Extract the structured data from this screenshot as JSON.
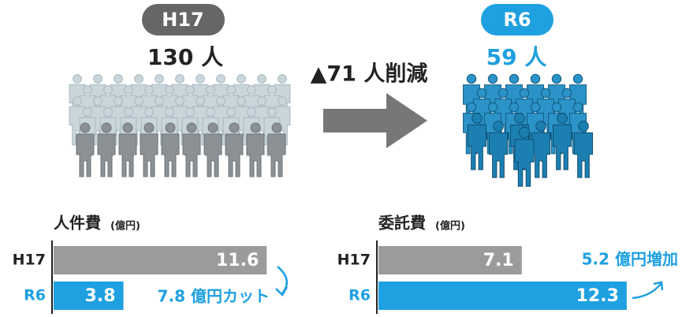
{
  "headcount": {
    "before": {
      "era": "H17",
      "count": "130 人"
    },
    "change": "▲71 人削減",
    "after": {
      "era": "R6",
      "count": "59 人"
    }
  },
  "chart_data": [
    {
      "type": "bar",
      "title": "人件費",
      "unit": "(億円)",
      "categories": [
        "H17",
        "R6"
      ],
      "values": [
        11.6,
        3.8
      ],
      "colors": [
        "#9b9b9b",
        "#1ea0e1"
      ],
      "annotation": "7.8 億円カット"
    },
    {
      "type": "bar",
      "title": "委託費",
      "unit": "(億円)",
      "categories": [
        "H17",
        "R6"
      ],
      "values": [
        7.1,
        12.3
      ],
      "colors": [
        "#9b9b9b",
        "#1ea0e1"
      ],
      "annotation": "5.2 億円増加"
    }
  ]
}
